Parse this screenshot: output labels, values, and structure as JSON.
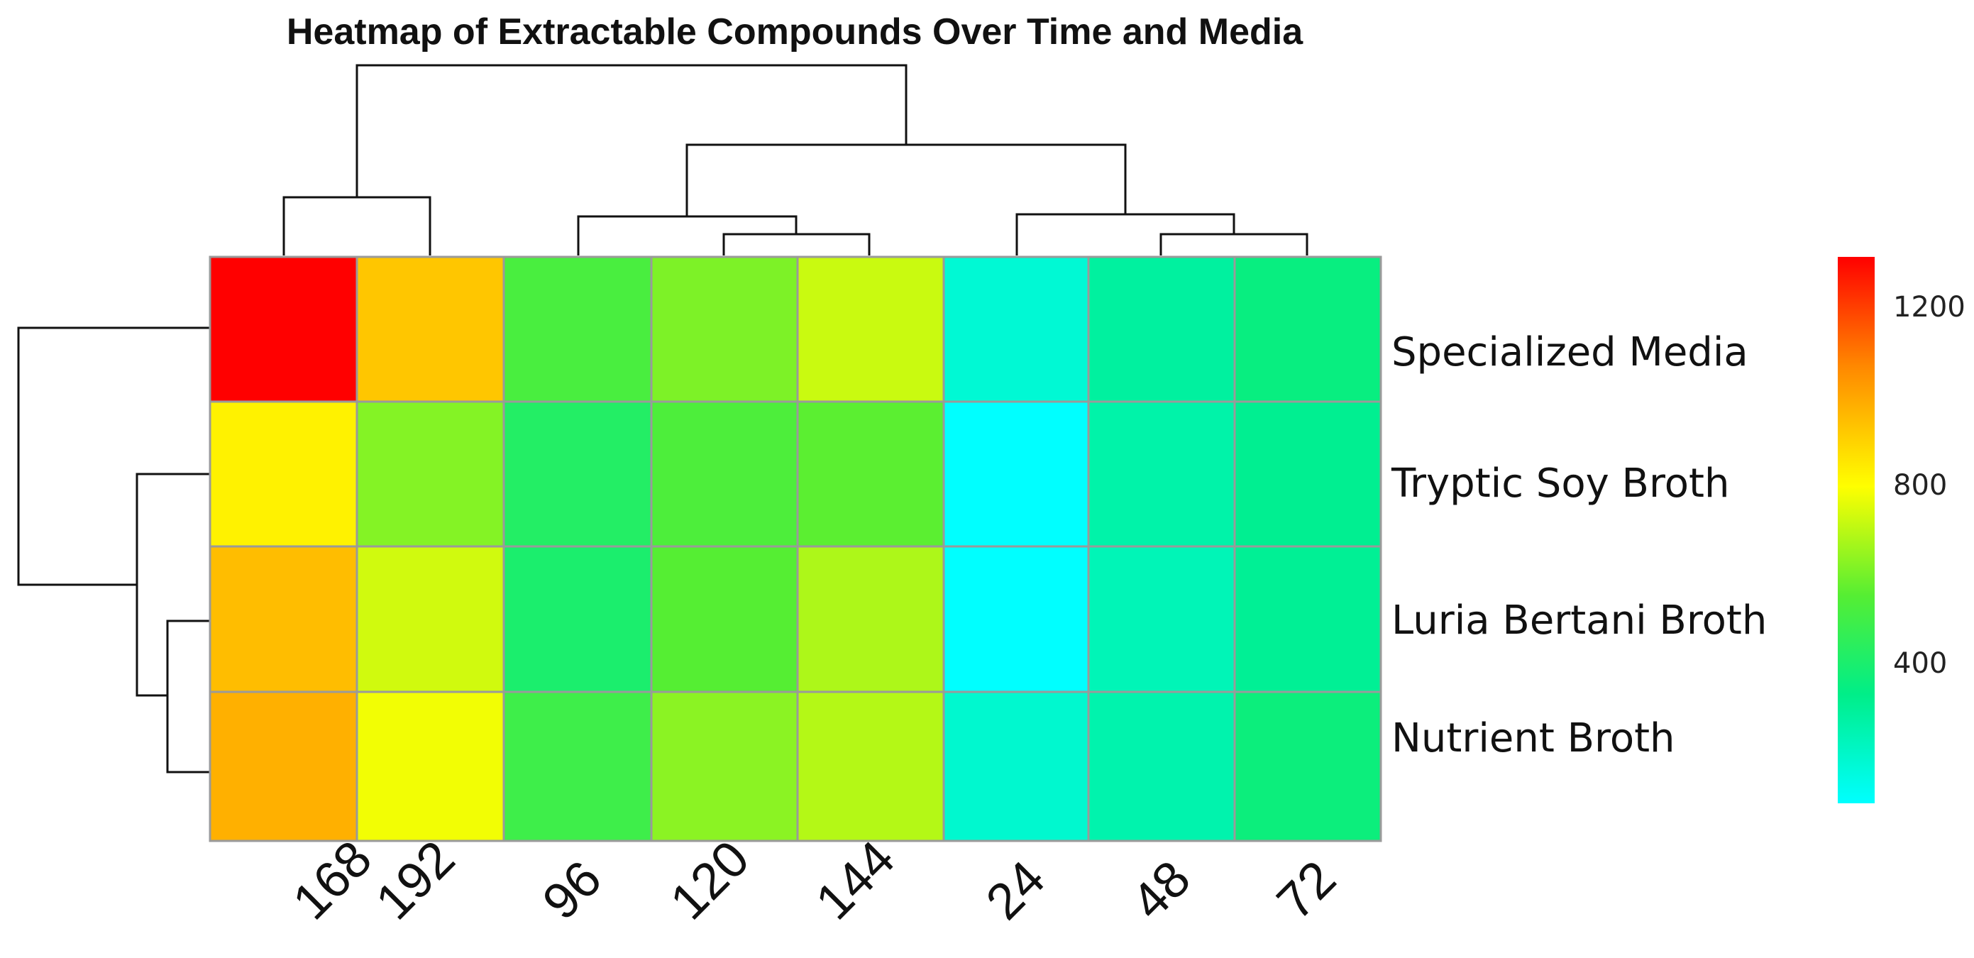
{
  "chart_data": {
    "type": "heatmap",
    "title": "Heatmap of Extractable Compounds Over Time and Media",
    "columns": [
      "168",
      "192",
      "96",
      "120",
      "144",
      "24",
      "48",
      "72"
    ],
    "rows": [
      "Specialized Media",
      "Tryptic Soy Broth",
      "Luria Bertani Broth",
      "Nutrient Broth"
    ],
    "values": [
      [
        1320,
        930,
        520,
        610,
        720,
        170,
        280,
        350
      ],
      [
        830,
        620,
        420,
        530,
        560,
        70,
        260,
        310
      ],
      [
        950,
        730,
        400,
        550,
        680,
        60,
        230,
        300
      ],
      [
        980,
        780,
        490,
        630,
        690,
        180,
        250,
        360
      ]
    ],
    "colorbar": {
      "min": 80,
      "max": 1320,
      "ticks": [
        400,
        800,
        1200
      ],
      "colors": [
        "#00ffff",
        "#00ee88",
        "#55ee33",
        "#ffff00",
        "#ff8800",
        "#ff0000"
      ]
    },
    "dendrogram": {
      "rows": true,
      "columns": true
    }
  }
}
